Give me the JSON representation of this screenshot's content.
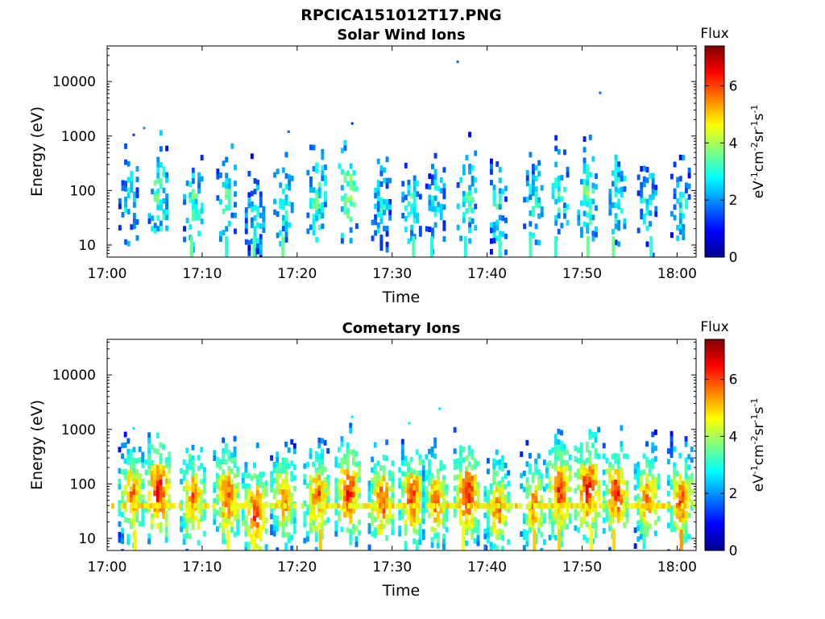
{
  "figure": {
    "title": "RPCICA151012T17.PNG"
  },
  "colorbar": {
    "title": "Flux",
    "unit_prefix": "eV",
    "unit_rest": "cm",
    "unit_s": "s",
    "unit_exponents": [
      "-1",
      "-2",
      "-1",
      "-1"
    ],
    "unit_sr": "sr",
    "range": [
      0,
      7.4
    ],
    "tick_labels": [
      "0",
      "2",
      "4",
      "6"
    ],
    "tick_values": [
      0,
      2,
      4,
      6
    ],
    "colormap": "jet",
    "colormap_stops": [
      "#00008f",
      "#0000ff",
      "#00ffff",
      "#ffff00",
      "#ff0000",
      "#800000"
    ]
  },
  "chart_data": [
    {
      "type": "heatmap",
      "title": "Solar Wind Ions",
      "xlabel": "Time",
      "ylabel": "Energy (eV)",
      "x_tick_labels": [
        "17:00",
        "17:10",
        "17:20",
        "17:30",
        "17:40",
        "17:50",
        "18:00"
      ],
      "x_tick_minutes": [
        0,
        10,
        20,
        30,
        40,
        50,
        60
      ],
      "xlim_minutes": [
        0,
        62
      ],
      "y_scale": "log",
      "y_tick_labels": [
        "10",
        "100",
        "1000",
        "10000"
      ],
      "y_tick_values": [
        10,
        100,
        1000,
        10000
      ],
      "ylim": [
        6,
        45000
      ],
      "bursts": [
        {
          "t": 2.2,
          "e": 80,
          "flux": 3.0
        },
        {
          "t": 5.3,
          "e": 100,
          "flux": 3.6
        },
        {
          "t": 9.0,
          "e": 55,
          "flux": 3.4
        },
        {
          "t": 12.5,
          "e": 90,
          "flux": 3.3
        },
        {
          "t": 15.5,
          "e": 40,
          "flux": 3.0
        },
        {
          "t": 18.5,
          "e": 70,
          "flux": 3.2
        },
        {
          "t": 22.0,
          "e": 70,
          "flux": 3.5
        },
        {
          "t": 25.3,
          "e": 100,
          "flux": 3.8
        },
        {
          "t": 28.8,
          "e": 60,
          "flux": 3.0
        },
        {
          "t": 32.0,
          "e": 60,
          "flux": 3.2
        },
        {
          "t": 34.5,
          "e": 60,
          "flux": 3.0
        },
        {
          "t": 37.8,
          "e": 85,
          "flux": 3.4
        },
        {
          "t": 41.0,
          "e": 45,
          "flux": 3.0
        },
        {
          "t": 44.8,
          "e": 55,
          "flux": 3.1
        },
        {
          "t": 47.5,
          "e": 80,
          "flux": 3.2
        },
        {
          "t": 50.5,
          "e": 95,
          "flux": 3.6
        },
        {
          "t": 53.5,
          "e": 80,
          "flux": 3.3
        },
        {
          "t": 56.8,
          "e": 70,
          "flux": 3.0
        },
        {
          "t": 60.3,
          "e": 60,
          "flux": 3.0
        }
      ],
      "sparse_points": [
        {
          "t": 36.9,
          "e": 23000,
          "flux": 1.6
        },
        {
          "t": 51.9,
          "e": 6200,
          "flux": 1.6
        },
        {
          "t": 25.8,
          "e": 1700,
          "flux": 1.2
        },
        {
          "t": 19.1,
          "e": 1200,
          "flux": 1.6
        },
        {
          "t": 3.9,
          "e": 1400,
          "flux": 2.0
        },
        {
          "t": 2.8,
          "e": 1050,
          "flux": 1.2
        }
      ]
    },
    {
      "type": "heatmap",
      "title": "Cometary Ions",
      "xlabel": "Time",
      "ylabel": "Energy (eV)",
      "x_tick_labels": [
        "17:00",
        "17:10",
        "17:20",
        "17:30",
        "17:40",
        "17:50",
        "18:00"
      ],
      "x_tick_minutes": [
        0,
        10,
        20,
        30,
        40,
        50,
        60
      ],
      "xlim_minutes": [
        0,
        62
      ],
      "y_scale": "log",
      "y_tick_labels": [
        "10",
        "100",
        "1000",
        "10000"
      ],
      "y_tick_values": [
        10,
        100,
        1000,
        10000
      ],
      "ylim": [
        6,
        45000
      ],
      "bursts": [
        {
          "t": 2.5,
          "e": 70,
          "flux": 6.0
        },
        {
          "t": 5.3,
          "e": 85,
          "flux": 6.8
        },
        {
          "t": 9.0,
          "e": 60,
          "flux": 6.2
        },
        {
          "t": 12.5,
          "e": 65,
          "flux": 6.3
        },
        {
          "t": 15.5,
          "e": 35,
          "flux": 6.5
        },
        {
          "t": 18.5,
          "e": 60,
          "flux": 6.0
        },
        {
          "t": 22.0,
          "e": 65,
          "flux": 6.2
        },
        {
          "t": 25.3,
          "e": 80,
          "flux": 6.6
        },
        {
          "t": 28.8,
          "e": 55,
          "flux": 6.3
        },
        {
          "t": 32.0,
          "e": 60,
          "flux": 6.4
        },
        {
          "t": 34.5,
          "e": 55,
          "flux": 6.1
        },
        {
          "t": 37.8,
          "e": 75,
          "flux": 6.7
        },
        {
          "t": 41.0,
          "e": 40,
          "flux": 6.0
        },
        {
          "t": 44.8,
          "e": 45,
          "flux": 5.8
        },
        {
          "t": 47.5,
          "e": 80,
          "flux": 6.5
        },
        {
          "t": 50.5,
          "e": 90,
          "flux": 6.8
        },
        {
          "t": 53.5,
          "e": 75,
          "flux": 6.5
        },
        {
          "t": 56.8,
          "e": 60,
          "flux": 6.0
        },
        {
          "t": 60.3,
          "e": 55,
          "flux": 6.2
        }
      ],
      "sparse_points": [
        {
          "t": 35.0,
          "e": 2400,
          "flux": 2.6
        },
        {
          "t": 25.8,
          "e": 1700,
          "flux": 2.6
        },
        {
          "t": 31.8,
          "e": 1300,
          "flux": 2.6
        },
        {
          "t": 2.8,
          "e": 1050,
          "flux": 2.6
        }
      ]
    }
  ]
}
